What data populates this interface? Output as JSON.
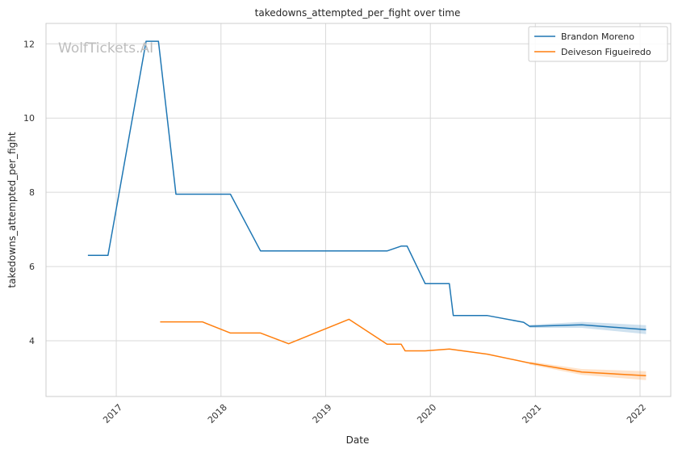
{
  "chart_data": {
    "type": "line",
    "title": "takedowns_attempted_per_fight over time",
    "xlabel": "Date",
    "ylabel": "takedowns_attempted_per_fight",
    "watermark": "WolfTickets.AI",
    "x_ticks": [
      "2017",
      "2018",
      "2019",
      "2020",
      "2021",
      "2022"
    ],
    "y_ticks": [
      "4",
      "6",
      "8",
      "10",
      "12"
    ],
    "xlim": [
      "2016-05-01",
      "2022-04-18"
    ],
    "ylim": [
      2.5,
      12.55
    ],
    "grid": true,
    "legend_position": "top-right",
    "series": [
      {
        "name": "Brandon Moreno",
        "color": "#1f77b4",
        "points": [
          [
            "2016-09-24",
            6.3
          ],
          [
            "2016-12-03",
            6.3
          ],
          [
            "2017-04-15",
            12.07
          ],
          [
            "2017-05-28",
            12.07
          ],
          [
            "2017-07-28",
            7.95
          ],
          [
            "2018-02-03",
            7.95
          ],
          [
            "2018-05-19",
            6.42
          ],
          [
            "2019-08-03",
            6.42
          ],
          [
            "2019-09-21",
            6.55
          ],
          [
            "2019-10-12",
            6.55
          ],
          [
            "2019-12-14",
            5.54
          ],
          [
            "2020-03-07",
            5.54
          ],
          [
            "2020-03-21",
            4.68
          ],
          [
            "2020-07-18",
            4.68
          ],
          [
            "2020-11-21",
            4.5
          ],
          [
            "2020-12-12",
            4.39
          ],
          [
            "2021-06-12",
            4.43
          ],
          [
            "2022-01-22",
            4.3
          ]
        ]
      },
      {
        "name": "Deiveson Figueiredo",
        "color": "#ff7f0e",
        "points": [
          [
            "2017-06-03",
            4.51
          ],
          [
            "2017-10-28",
            4.51
          ],
          [
            "2018-02-03",
            4.21
          ],
          [
            "2018-05-19",
            4.21
          ],
          [
            "2018-08-25",
            3.92
          ],
          [
            "2019-03-23",
            4.58
          ],
          [
            "2019-08-03",
            3.91
          ],
          [
            "2019-09-21",
            3.91
          ],
          [
            "2019-10-05",
            3.73
          ],
          [
            "2019-12-14",
            3.73
          ],
          [
            "2020-03-07",
            3.78
          ],
          [
            "2020-07-18",
            3.64
          ],
          [
            "2020-12-12",
            3.4
          ],
          [
            "2021-06-12",
            3.16
          ],
          [
            "2022-01-22",
            3.06
          ]
        ]
      }
    ]
  }
}
